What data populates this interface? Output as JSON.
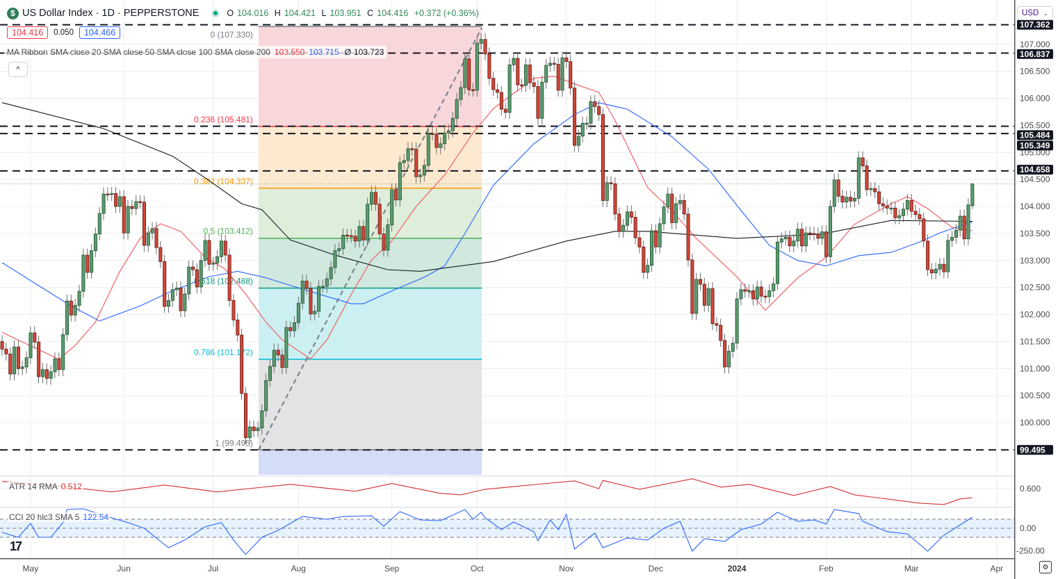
{
  "header": {
    "symbol_title": "US Dollar Index · 1D · PEPPERSTONE",
    "logo_letter": "$",
    "status_color": "#089981",
    "ohlc": {
      "o_label": "O",
      "o": "104.016",
      "h_label": "H",
      "h": "104.421",
      "l_label": "L",
      "l": "103.951",
      "c_label": "C",
      "c": "104.416",
      "change": "+0.372 (+0.36%)"
    }
  },
  "trade_boxes": {
    "sell": "104.416",
    "spread": "0.050",
    "buy": "104.466"
  },
  "ma_legend": {
    "label": "MA Ribbon SMA close 20 SMA close 50 SMA close 100 SMA close 200",
    "sma20": "103.550",
    "sma50": "103.715",
    "sma200": "103.723",
    "sma200_prefix": "Ø"
  },
  "collapse_button": "^",
  "currency_select": "USD",
  "indicators": {
    "atr": {
      "label": "ATR 14 RMA",
      "value": "0.512",
      "color": "#d32f2f"
    },
    "cci": {
      "label": "CCI 20 hlc3 SMA 5",
      "value": "122.54",
      "color": "#2962ff"
    }
  },
  "colors": {
    "up": "#5b9c70",
    "up_border": "#1f4f2f",
    "down": "#d1473a",
    "down_border": "#5e1810",
    "sma20": "#f2545b",
    "sma50": "#2962ff",
    "sma200": "#131722"
  },
  "chart_data": {
    "type": "candlestick",
    "title": "US Dollar Index · 1D · PEPPERSTONE",
    "y_ticks": [
      "107.000",
      "106.500",
      "106.000",
      "105.500",
      "105.000",
      "104.500",
      "104.000",
      "103.500",
      "103.000",
      "102.500",
      "102.000",
      "101.500",
      "101.000",
      "100.500",
      "100.000"
    ],
    "x_ticks": [
      {
        "label": "May",
        "bar": 7
      },
      {
        "label": "Jun",
        "bar": 30
      },
      {
        "label": "Jul",
        "bar": 52
      },
      {
        "label": "Aug",
        "bar": 73
      },
      {
        "label": "Sep",
        "bar": 96
      },
      {
        "label": "Oct",
        "bar": 117
      },
      {
        "label": "Nov",
        "bar": 139
      },
      {
        "label": "Dec",
        "bar": 161
      },
      {
        "label": "2024",
        "bar": 181
      },
      {
        "label": "Feb",
        "bar": 203
      },
      {
        "label": "Mar",
        "bar": 224
      },
      {
        "label": "Apr",
        "bar": 245
      }
    ],
    "close": [
      101.36,
      101.27,
      100.9,
      101.4,
      101.0,
      101.03,
      101.2,
      101.66,
      101.49,
      100.85,
      100.98,
      100.82,
      100.94,
      101.18,
      100.98,
      101.63,
      102.25,
      101.99,
      102.17,
      102.43,
      103.1,
      102.78,
      103.18,
      103.49,
      103.87,
      104.23,
      104.22,
      104.24,
      104.0,
      104.18,
      103.51,
      104.0,
      103.96,
      104.09,
      104.08,
      103.28,
      103.51,
      103.59,
      103.24,
      102.98,
      102.15,
      102.26,
      102.46,
      102.49,
      102.07,
      102.38,
      102.88,
      102.83,
      102.51,
      103.0,
      103.37,
      102.93,
      102.95,
      103.07,
      103.36,
      103.1,
      102.26,
      101.9,
      101.62,
      100.54,
      99.72,
      99.92,
      99.85,
      99.9,
      100.22,
      100.78,
      101.04,
      101.34,
      101.25,
      101.02,
      101.76,
      101.7,
      101.85,
      102.21,
      102.62,
      102.48,
      102.01,
      102.06,
      102.52,
      102.52,
      102.66,
      102.87,
      103.18,
      103.22,
      103.47,
      103.46,
      103.45,
      103.36,
      103.63,
      103.38,
      104.04,
      104.26,
      104.04,
      103.49,
      103.19,
      103.66,
      104.31,
      104.12,
      104.81,
      104.85,
      105.07,
      105.06,
      104.55,
      104.58,
      104.76,
      105.35,
      105.34,
      105.09,
      105.16,
      105.36,
      105.4,
      105.63,
      105.98,
      106.2,
      106.73,
      106.16,
      106.15,
      107.02,
      107.09,
      106.82,
      106.37,
      106.16,
      106.11,
      105.8,
      105.74,
      106.62,
      106.74,
      106.25,
      106.24,
      106.62,
      106.29,
      106.22,
      105.63,
      106.3,
      106.61,
      106.65,
      106.63,
      106.15,
      106.75,
      106.68,
      106.19,
      105.13,
      105.3,
      105.54,
      105.54,
      105.94,
      105.85,
      105.7,
      104.11,
      104.44,
      104.42,
      103.86,
      103.54,
      103.65,
      103.9,
      103.8,
      103.42,
      103.25,
      102.78,
      102.91,
      103.55,
      103.25,
      103.68,
      103.99,
      104.23,
      103.7,
      104.05,
      104.11,
      103.86,
      103.01,
      102.02,
      102.65,
      102.56,
      102.17,
      102.48,
      101.83,
      101.8,
      101.52,
      101.03,
      101.32,
      101.47,
      102.29,
      102.46,
      102.43,
      102.44,
      102.29,
      102.51,
      102.34,
      102.33,
      102.44,
      102.57,
      103.34,
      103.4,
      103.43,
      103.27,
      103.36,
      103.58,
      103.27,
      103.51,
      103.5,
      103.49,
      103.41,
      103.53,
      103.07,
      104.0,
      104.49,
      104.19,
      104.08,
      104.17,
      104.1,
      104.15,
      104.9,
      104.75,
      104.31,
      104.33,
      104.27,
      104.05,
      104.01,
      103.97,
      103.97,
      103.79,
      103.83,
      103.95,
      104.11,
      103.91,
      103.85,
      103.77,
      103.36,
      102.83,
      102.77,
      102.84,
      102.93,
      102.79,
      103.37,
      103.43,
      103.56,
      103.82,
      103.4,
      104.03,
      104.42
    ],
    "last": {
      "open": 104.016,
      "high": 104.421,
      "low": 103.951,
      "close": 104.416
    },
    "series": [
      {
        "name": "SMA close 20",
        "points": [
          [
            0,
            101.67
          ],
          [
            9,
            101.35
          ],
          [
            14,
            101.17
          ],
          [
            18,
            101.43
          ],
          [
            23,
            101.86
          ],
          [
            29,
            102.8
          ],
          [
            34,
            103.41
          ],
          [
            39,
            103.68
          ],
          [
            44,
            103.54
          ],
          [
            50,
            103.06
          ],
          [
            55,
            102.84
          ],
          [
            60,
            102.38
          ],
          [
            65,
            101.86
          ],
          [
            69,
            101.53
          ],
          [
            76,
            101.18
          ],
          [
            80,
            101.53
          ],
          [
            86,
            102.37
          ],
          [
            91,
            103.01
          ],
          [
            96,
            103.36
          ],
          [
            102,
            104.0
          ],
          [
            109,
            104.58
          ],
          [
            116,
            105.36
          ],
          [
            121,
            105.81
          ],
          [
            131,
            106.37
          ],
          [
            136,
            106.41
          ],
          [
            142,
            106.24
          ],
          [
            147,
            106.11
          ],
          [
            151,
            105.59
          ],
          [
            159,
            104.35
          ],
          [
            165,
            103.92
          ],
          [
            171,
            103.41
          ],
          [
            181,
            102.7
          ],
          [
            188,
            102.08
          ],
          [
            196,
            102.68
          ],
          [
            203,
            103.06
          ],
          [
            210,
            103.67
          ],
          [
            219,
            104.05
          ],
          [
            223,
            104.18
          ],
          [
            228,
            103.96
          ],
          [
            234,
            103.61
          ],
          [
            239,
            103.55
          ]
        ]
      },
      {
        "name": "SMA close 50",
        "points": [
          [
            0,
            102.96
          ],
          [
            17,
            102.16
          ],
          [
            24,
            101.88
          ],
          [
            34,
            102.16
          ],
          [
            42,
            102.44
          ],
          [
            51,
            102.7
          ],
          [
            58,
            102.8
          ],
          [
            65,
            102.68
          ],
          [
            74,
            102.47
          ],
          [
            86,
            102.2
          ],
          [
            89,
            102.2
          ],
          [
            97,
            102.47
          ],
          [
            104,
            102.69
          ],
          [
            109,
            102.9
          ],
          [
            114,
            103.5
          ],
          [
            121,
            104.39
          ],
          [
            131,
            105.16
          ],
          [
            141,
            105.7
          ],
          [
            147,
            105.92
          ],
          [
            154,
            105.8
          ],
          [
            165,
            105.29
          ],
          [
            174,
            104.69
          ],
          [
            181,
            104.02
          ],
          [
            189,
            103.28
          ],
          [
            196,
            103.0
          ],
          [
            203,
            102.9
          ],
          [
            211,
            103.09
          ],
          [
            219,
            103.15
          ],
          [
            226,
            103.34
          ],
          [
            231,
            103.51
          ],
          [
            239,
            103.715
          ]
        ]
      },
      {
        "name": "SMA close 200",
        "points": [
          [
            0,
            105.92
          ],
          [
            25,
            105.44
          ],
          [
            42,
            104.93
          ],
          [
            51,
            104.48
          ],
          [
            59,
            104.05
          ],
          [
            64,
            103.94
          ],
          [
            71,
            103.38
          ],
          [
            82,
            103.1
          ],
          [
            95,
            102.83
          ],
          [
            103,
            102.8
          ],
          [
            121,
            102.98
          ],
          [
            139,
            103.36
          ],
          [
            151,
            103.54
          ],
          [
            159,
            103.54
          ],
          [
            181,
            103.41
          ],
          [
            202,
            103.49
          ],
          [
            219,
            103.74
          ],
          [
            239,
            103.723
          ]
        ]
      }
    ],
    "horizontal_levels": [
      "107.362",
      "106.837",
      "105.484",
      "105.349",
      "104.658",
      "99.495"
    ],
    "fibonacci": {
      "start_bar": 63,
      "end_bar": 118,
      "levels": [
        {
          "label": "0 (107.330)",
          "price": 107.33,
          "color": "#787b86",
          "fill": "#f8d7da"
        },
        {
          "label": "0.236 (105.481)",
          "price": 105.481,
          "color": "#f23645",
          "fill": "#fde9cf"
        },
        {
          "label": "0.382 (104.337)",
          "price": 104.337,
          "color": "#ff9800",
          "fill": "#dfeedb"
        },
        {
          "label": "0.5 (103.412)",
          "price": 103.412,
          "color": "#4caf50",
          "fill": "#d0e8de"
        },
        {
          "label": "0.618 (102.488)",
          "price": 102.488,
          "color": "#089981",
          "fill": "#ccf0f2"
        },
        {
          "label": "0.786 (101.172)",
          "price": 101.172,
          "color": "#00bcd4",
          "fill": "#e3e3e5"
        },
        {
          "label": "1 (99.495)",
          "price": 99.495,
          "color": "#787b86",
          "fill": "#d3ddf8"
        }
      ]
    },
    "atr": {
      "tick": "0.600",
      "points": [
        [
          0,
          0.67
        ],
        [
          15,
          0.62
        ],
        [
          27,
          0.568
        ],
        [
          40,
          0.635
        ],
        [
          53,
          0.568
        ],
        [
          71,
          0.642
        ],
        [
          87,
          0.574
        ],
        [
          96,
          0.649
        ],
        [
          108,
          0.554
        ],
        [
          113,
          0.54
        ],
        [
          119,
          0.594
        ],
        [
          141,
          0.676
        ],
        [
          147,
          0.6
        ],
        [
          148,
          0.68
        ],
        [
          157,
          0.594
        ],
        [
          170,
          0.696
        ],
        [
          177,
          0.615
        ],
        [
          184,
          0.642
        ],
        [
          195,
          0.534
        ],
        [
          204,
          0.62
        ],
        [
          210,
          0.54
        ],
        [
          226,
          0.459
        ],
        [
          232,
          0.446
        ],
        [
          236,
          0.5
        ],
        [
          239,
          0.512
        ]
      ]
    },
    "cci": {
      "ticks": [
        "0.00",
        "-250.00"
      ],
      "band": [
        100,
        -100
      ],
      "points": [
        [
          0,
          -46
        ],
        [
          4,
          -100
        ],
        [
          7,
          54
        ],
        [
          9,
          -100
        ],
        [
          12,
          -100
        ],
        [
          15,
          62
        ],
        [
          16,
          208
        ],
        [
          20,
          215
        ],
        [
          26,
          130
        ],
        [
          31,
          62
        ],
        [
          35,
          0
        ],
        [
          41,
          -215
        ],
        [
          45,
          -130
        ],
        [
          50,
          15
        ],
        [
          54,
          62
        ],
        [
          57,
          -130
        ],
        [
          60,
          -290
        ],
        [
          64,
          -100
        ],
        [
          68,
          -23
        ],
        [
          74,
          130
        ],
        [
          80,
          100
        ],
        [
          84,
          130
        ],
        [
          91,
          138
        ],
        [
          94,
          23
        ],
        [
          98,
          185
        ],
        [
          103,
          92
        ],
        [
          108,
          85
        ],
        [
          114,
          208
        ],
        [
          116,
          100
        ],
        [
          118,
          177
        ],
        [
          119,
          115
        ],
        [
          123,
          -15
        ],
        [
          126,
          69
        ],
        [
          131,
          -38
        ],
        [
          132,
          -138
        ],
        [
          135,
          92
        ],
        [
          137,
          -15
        ],
        [
          139,
          154
        ],
        [
          141,
          -230
        ],
        [
          146,
          -54
        ],
        [
          148,
          -215
        ],
        [
          154,
          -108
        ],
        [
          159,
          -130
        ],
        [
          163,
          0
        ],
        [
          167,
          77
        ],
        [
          170,
          -254
        ],
        [
          173,
          -115
        ],
        [
          178,
          -146
        ],
        [
          182,
          -15
        ],
        [
          187,
          46
        ],
        [
          191,
          177
        ],
        [
          196,
          77
        ],
        [
          200,
          92
        ],
        [
          203,
          46
        ],
        [
          205,
          208
        ],
        [
          211,
          162
        ],
        [
          212,
          77
        ],
        [
          218,
          -38
        ],
        [
          223,
          -62
        ],
        [
          228,
          -254
        ],
        [
          232,
          -77
        ],
        [
          236,
          38
        ],
        [
          239,
          122.54
        ]
      ]
    },
    "grid": true
  }
}
